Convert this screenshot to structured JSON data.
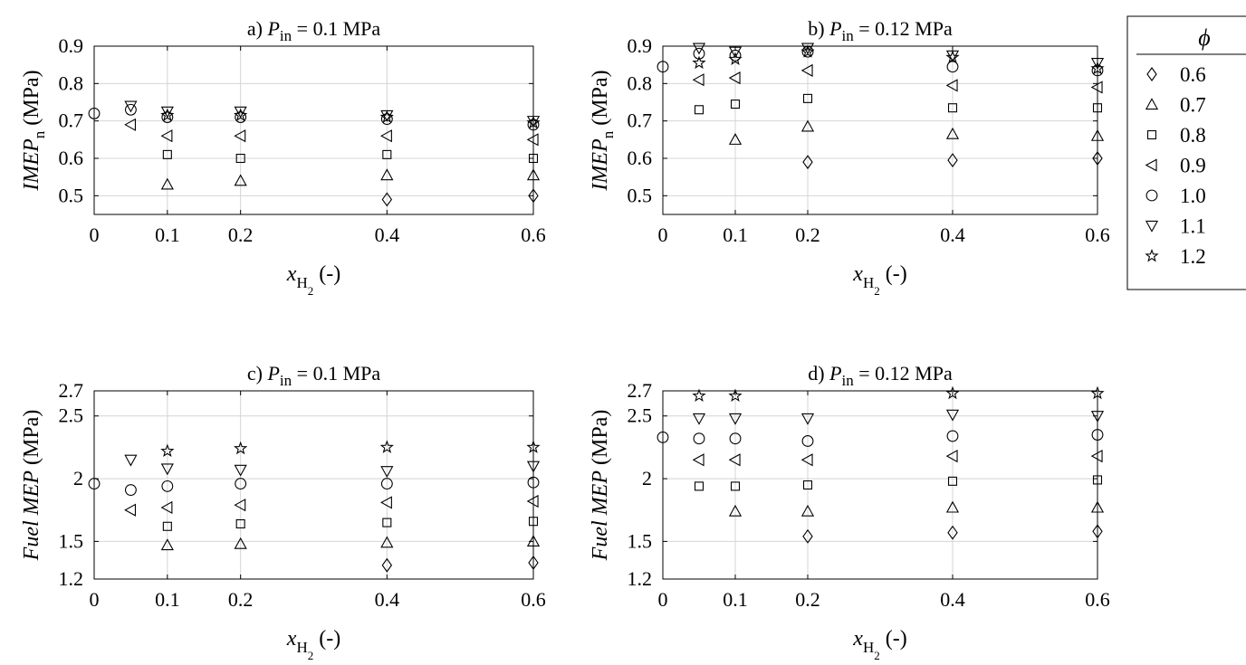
{
  "legend": {
    "title": "ϕ",
    "items": [
      {
        "label": "0.6",
        "marker": "diamond-icon"
      },
      {
        "label": "0.7",
        "marker": "triangle-up-icon"
      },
      {
        "label": "0.8",
        "marker": "square-icon"
      },
      {
        "label": "0.9",
        "marker": "triangle-left-icon"
      },
      {
        "label": "1.0",
        "marker": "circle-icon"
      },
      {
        "label": "1.1",
        "marker": "triangle-down-icon"
      },
      {
        "label": "1.2",
        "marker": "star-icon"
      }
    ]
  },
  "chart_data": [
    {
      "id": "a",
      "type": "scatter",
      "title": {
        "prefix": "a) ",
        "var": "P",
        "sub": "in",
        "suffix": " = 0.1 MPa"
      },
      "xlabel": {
        "var": "x",
        "sub": "H",
        "subsub": "2",
        "suffix": " (-)"
      },
      "ylabel": {
        "var": "IMEP",
        "sub": "n",
        "suffix": " (MPa)"
      },
      "xlim": [
        0,
        0.6
      ],
      "ylim": [
        0.45,
        0.9
      ],
      "xticks": [
        0,
        0.1,
        0.2,
        0.4,
        0.6
      ],
      "xticklabels": [
        "0",
        "0.1",
        "0.2",
        "0.4",
        "0.6"
      ],
      "yticks": [
        0.5,
        0.6,
        0.7,
        0.8,
        0.9
      ],
      "yticklabels": [
        "0.5",
        "0.6",
        "0.7",
        "0.8",
        "0.9"
      ],
      "grid": true,
      "series": [
        {
          "name": "0.6",
          "marker": "diamond",
          "points": [
            [
              0.4,
              0.49
            ],
            [
              0.6,
              0.5
            ]
          ]
        },
        {
          "name": "0.7",
          "marker": "triangle-up",
          "points": [
            [
              0.1,
              0.53
            ],
            [
              0.2,
              0.54
            ],
            [
              0.4,
              0.555
            ],
            [
              0.6,
              0.555
            ]
          ]
        },
        {
          "name": "0.8",
          "marker": "square",
          "points": [
            [
              0.1,
              0.61
            ],
            [
              0.2,
              0.6
            ],
            [
              0.4,
              0.61
            ],
            [
              0.6,
              0.6
            ]
          ]
        },
        {
          "name": "0.9",
          "marker": "triangle-left",
          "points": [
            [
              0.05,
              0.69
            ],
            [
              0.1,
              0.66
            ],
            [
              0.2,
              0.66
            ],
            [
              0.4,
              0.66
            ],
            [
              0.6,
              0.65
            ]
          ]
        },
        {
          "name": "1.0",
          "marker": "circle",
          "points": [
            [
              0,
              0.72
            ],
            [
              0.05,
              0.73
            ],
            [
              0.1,
              0.71
            ],
            [
              0.2,
              0.71
            ],
            [
              0.4,
              0.705
            ],
            [
              0.6,
              0.69
            ]
          ]
        },
        {
          "name": "1.1",
          "marker": "triangle-down",
          "points": [
            [
              0.05,
              0.74
            ],
            [
              0.1,
              0.725
            ],
            [
              0.2,
              0.725
            ],
            [
              0.4,
              0.715
            ],
            [
              0.6,
              0.7
            ]
          ]
        },
        {
          "name": "1.2",
          "marker": "star",
          "points": [
            [
              0.1,
              0.715
            ],
            [
              0.2,
              0.715
            ],
            [
              0.4,
              0.71
            ],
            [
              0.6,
              0.695
            ]
          ]
        }
      ]
    },
    {
      "id": "b",
      "type": "scatter",
      "title": {
        "prefix": "b) ",
        "var": "P",
        "sub": "in",
        "suffix": " = 0.12 MPa"
      },
      "xlabel": {
        "var": "x",
        "sub": "H",
        "subsub": "2",
        "suffix": " (-)"
      },
      "ylabel": {
        "var": "IMEP",
        "sub": "n",
        "suffix": " (MPa)"
      },
      "xlim": [
        0,
        0.6
      ],
      "ylim": [
        0.45,
        0.9
      ],
      "xticks": [
        0,
        0.1,
        0.2,
        0.4,
        0.6
      ],
      "xticklabels": [
        "0",
        "0.1",
        "0.2",
        "0.4",
        "0.6"
      ],
      "yticks": [
        0.5,
        0.6,
        0.7,
        0.8,
        0.9
      ],
      "yticklabels": [
        "0.5",
        "0.6",
        "0.7",
        "0.8",
        "0.9"
      ],
      "grid": true,
      "series": [
        {
          "name": "0.6",
          "marker": "diamond",
          "points": [
            [
              0.2,
              0.59
            ],
            [
              0.4,
              0.595
            ],
            [
              0.6,
              0.6
            ]
          ]
        },
        {
          "name": "0.7",
          "marker": "triangle-up",
          "points": [
            [
              0.1,
              0.65
            ],
            [
              0.2,
              0.685
            ],
            [
              0.4,
              0.665
            ],
            [
              0.6,
              0.66
            ]
          ]
        },
        {
          "name": "0.8",
          "marker": "square",
          "points": [
            [
              0.05,
              0.73
            ],
            [
              0.1,
              0.745
            ],
            [
              0.2,
              0.76
            ],
            [
              0.4,
              0.735
            ],
            [
              0.6,
              0.735
            ]
          ]
        },
        {
          "name": "0.9",
          "marker": "triangle-left",
          "points": [
            [
              0.05,
              0.81
            ],
            [
              0.1,
              0.815
            ],
            [
              0.2,
              0.835
            ],
            [
              0.4,
              0.795
            ],
            [
              0.6,
              0.79
            ]
          ]
        },
        {
          "name": "1.0",
          "marker": "circle",
          "points": [
            [
              0,
              0.845
            ],
            [
              0.05,
              0.88
            ],
            [
              0.1,
              0.875
            ],
            [
              0.2,
              0.885
            ],
            [
              0.4,
              0.845
            ],
            [
              0.6,
              0.835
            ]
          ]
        },
        {
          "name": "1.1",
          "marker": "triangle-down",
          "points": [
            [
              0.05,
              0.895
            ],
            [
              0.1,
              0.885
            ],
            [
              0.2,
              0.895
            ],
            [
              0.4,
              0.875
            ],
            [
              0.6,
              0.855
            ]
          ]
        },
        {
          "name": "1.2",
          "marker": "star",
          "points": [
            [
              0.05,
              0.855
            ],
            [
              0.1,
              0.865
            ],
            [
              0.2,
              0.885
            ],
            [
              0.4,
              0.87
            ],
            [
              0.6,
              0.84
            ]
          ]
        }
      ]
    },
    {
      "id": "c",
      "type": "scatter",
      "title": {
        "prefix": "c) ",
        "var": "P",
        "sub": "in",
        "suffix": " = 0.1 MPa"
      },
      "xlabel": {
        "var": "x",
        "sub": "H",
        "subsub": "2",
        "suffix": " (-)"
      },
      "ylabel": {
        "var": "Fuel MEP",
        "sub": "",
        "suffix": " (MPa)"
      },
      "xlim": [
        0,
        0.6
      ],
      "ylim": [
        1.2,
        2.7
      ],
      "xticks": [
        0,
        0.1,
        0.2,
        0.4,
        0.6
      ],
      "xticklabels": [
        "0",
        "0.1",
        "0.2",
        "0.4",
        "0.6"
      ],
      "yticks": [
        1.2,
        1.5,
        2,
        2.5,
        2.7
      ],
      "yticklabels": [
        "1.2",
        "1.5",
        "2",
        "2.5",
        "2.7"
      ],
      "grid": true,
      "series": [
        {
          "name": "0.6",
          "marker": "diamond",
          "points": [
            [
              0.4,
              1.31
            ],
            [
              0.6,
              1.33
            ]
          ]
        },
        {
          "name": "0.7",
          "marker": "triangle-up",
          "points": [
            [
              0.1,
              1.47
            ],
            [
              0.2,
              1.48
            ],
            [
              0.4,
              1.49
            ],
            [
              0.6,
              1.5
            ]
          ]
        },
        {
          "name": "0.8",
          "marker": "square",
          "points": [
            [
              0.1,
              1.62
            ],
            [
              0.2,
              1.64
            ],
            [
              0.4,
              1.65
            ],
            [
              0.6,
              1.66
            ]
          ]
        },
        {
          "name": "0.9",
          "marker": "triangle-left",
          "points": [
            [
              0.05,
              1.75
            ],
            [
              0.1,
              1.77
            ],
            [
              0.2,
              1.79
            ],
            [
              0.4,
              1.81
            ],
            [
              0.6,
              1.82
            ]
          ]
        },
        {
          "name": "1.0",
          "marker": "circle",
          "points": [
            [
              0,
              1.96
            ],
            [
              0.05,
              1.91
            ],
            [
              0.1,
              1.94
            ],
            [
              0.2,
              1.96
            ],
            [
              0.4,
              1.96
            ],
            [
              0.6,
              1.97
            ]
          ]
        },
        {
          "name": "1.1",
          "marker": "triangle-down",
          "points": [
            [
              0.05,
              2.15
            ],
            [
              0.1,
              2.08
            ],
            [
              0.2,
              2.07
            ],
            [
              0.4,
              2.06
            ],
            [
              0.6,
              2.1
            ]
          ]
        },
        {
          "name": "1.2",
          "marker": "star",
          "points": [
            [
              0.1,
              2.22
            ],
            [
              0.2,
              2.24
            ],
            [
              0.4,
              2.25
            ],
            [
              0.6,
              2.25
            ]
          ]
        }
      ]
    },
    {
      "id": "d",
      "type": "scatter",
      "title": {
        "prefix": "d) ",
        "var": "P",
        "sub": "in",
        "suffix": " = 0.12 MPa"
      },
      "xlabel": {
        "var": "x",
        "sub": "H",
        "subsub": "2",
        "suffix": " (-)"
      },
      "ylabel": {
        "var": "Fuel MEP",
        "sub": "",
        "suffix": " (MPa)"
      },
      "xlim": [
        0,
        0.6
      ],
      "ylim": [
        1.2,
        2.7
      ],
      "xticks": [
        0,
        0.1,
        0.2,
        0.4,
        0.6
      ],
      "xticklabels": [
        "0",
        "0.1",
        "0.2",
        "0.4",
        "0.6"
      ],
      "yticks": [
        1.2,
        1.5,
        2,
        2.5,
        2.7
      ],
      "yticklabels": [
        "1.2",
        "1.5",
        "2",
        "2.5",
        "2.7"
      ],
      "grid": true,
      "series": [
        {
          "name": "0.6",
          "marker": "diamond",
          "points": [
            [
              0.2,
              1.54
            ],
            [
              0.4,
              1.57
            ],
            [
              0.6,
              1.58
            ]
          ]
        },
        {
          "name": "0.7",
          "marker": "triangle-up",
          "points": [
            [
              0.1,
              1.74
            ],
            [
              0.2,
              1.74
            ],
            [
              0.4,
              1.77
            ],
            [
              0.6,
              1.77
            ]
          ]
        },
        {
          "name": "0.8",
          "marker": "square",
          "points": [
            [
              0.05,
              1.94
            ],
            [
              0.1,
              1.94
            ],
            [
              0.2,
              1.95
            ],
            [
              0.4,
              1.98
            ],
            [
              0.6,
              1.99
            ]
          ]
        },
        {
          "name": "0.9",
          "marker": "triangle-left",
          "points": [
            [
              0.05,
              2.15
            ],
            [
              0.1,
              2.15
            ],
            [
              0.2,
              2.15
            ],
            [
              0.4,
              2.18
            ],
            [
              0.6,
              2.18
            ]
          ]
        },
        {
          "name": "1.0",
          "marker": "circle",
          "points": [
            [
              0,
              2.33
            ],
            [
              0.05,
              2.32
            ],
            [
              0.1,
              2.32
            ],
            [
              0.2,
              2.3
            ],
            [
              0.4,
              2.34
            ],
            [
              0.6,
              2.35
            ]
          ]
        },
        {
          "name": "1.1",
          "marker": "triangle-down",
          "points": [
            [
              0.05,
              2.48
            ],
            [
              0.1,
              2.48
            ],
            [
              0.2,
              2.48
            ],
            [
              0.4,
              2.51
            ],
            [
              0.6,
              2.5
            ]
          ]
        },
        {
          "name": "1.2",
          "marker": "star",
          "points": [
            [
              0.05,
              2.66
            ],
            [
              0.1,
              2.66
            ],
            [
              0.4,
              2.68
            ],
            [
              0.6,
              2.68
            ]
          ]
        }
      ]
    }
  ]
}
